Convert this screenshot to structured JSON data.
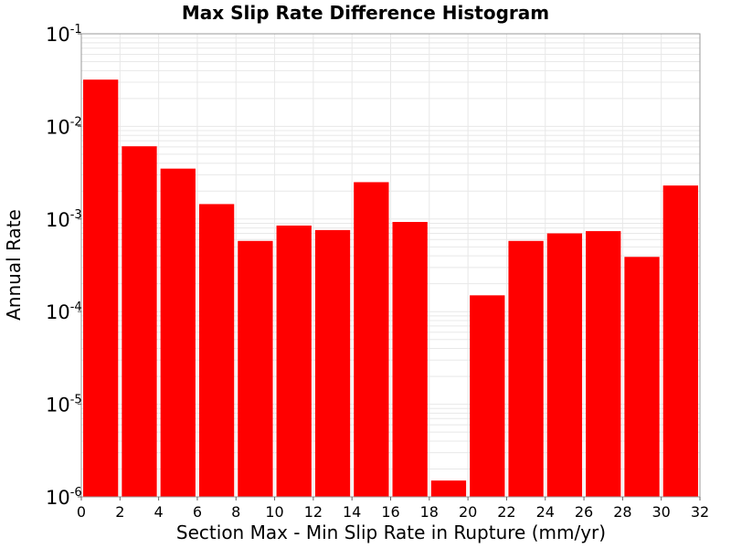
{
  "chart_data": {
    "type": "bar",
    "title": "Max Slip Rate Difference Histogram",
    "xlabel": "Section Max - Min Slip Rate in Rupture (mm/yr)",
    "ylabel": "Annual Rate",
    "y_scale": "log",
    "ylim": [
      1e-06,
      0.1
    ],
    "xlim": [
      0,
      32
    ],
    "bin_width": 2,
    "x_ticks": [
      "0",
      "2",
      "4",
      "6",
      "8",
      "10",
      "12",
      "14",
      "16",
      "18",
      "20",
      "22",
      "24",
      "26",
      "28",
      "30",
      "32"
    ],
    "y_ticks": [
      {
        "base": "10",
        "exp": "-6",
        "value": 1e-06
      },
      {
        "base": "10",
        "exp": "-5",
        "value": 1e-05
      },
      {
        "base": "10",
        "exp": "-4",
        "value": 0.0001
      },
      {
        "base": "10",
        "exp": "-3",
        "value": 0.001
      },
      {
        "base": "10",
        "exp": "-2",
        "value": 0.01
      },
      {
        "base": "10",
        "exp": "-1",
        "value": 0.1
      }
    ],
    "bins": [
      {
        "x": 1,
        "value": 0.032
      },
      {
        "x": 3,
        "value": 0.0061
      },
      {
        "x": 5,
        "value": 0.0035
      },
      {
        "x": 7,
        "value": 0.00145
      },
      {
        "x": 9,
        "value": 0.00058
      },
      {
        "x": 11,
        "value": 0.00085
      },
      {
        "x": 13,
        "value": 0.00076
      },
      {
        "x": 15,
        "value": 0.0025
      },
      {
        "x": 17,
        "value": 0.00093
      },
      {
        "x": 19,
        "value": 1.5e-06
      },
      {
        "x": 21,
        "value": 0.00015
      },
      {
        "x": 23,
        "value": 0.00058
      },
      {
        "x": 25,
        "value": 0.0007
      },
      {
        "x": 27,
        "value": 0.00074
      },
      {
        "x": 29,
        "value": 0.00039
      },
      {
        "x": 31,
        "value": 0.0023
      }
    ],
    "bar_color": "#ff0000",
    "grid": true,
    "grid_color": "#e8e8e8"
  }
}
